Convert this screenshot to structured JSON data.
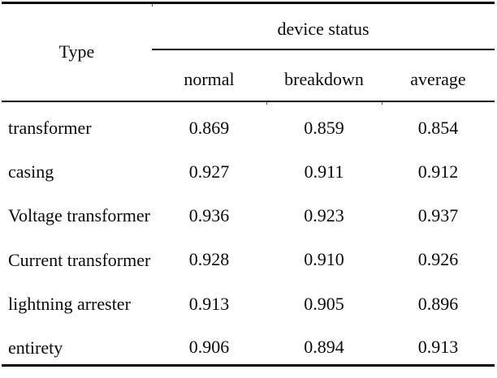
{
  "chart_data": {
    "type": "table",
    "corner_header": "Type",
    "group_header": "device status",
    "columns": [
      "normal",
      "breakdown",
      "average"
    ],
    "rows": [
      {
        "label": "transformer",
        "values": [
          "0.869",
          "0.859",
          "0.854"
        ]
      },
      {
        "label": "casing",
        "values": [
          "0.927",
          "0.911",
          "0.912"
        ]
      },
      {
        "label": "Voltage transformer",
        "values": [
          "0.936",
          "0.923",
          "0.937"
        ]
      },
      {
        "label": "Current transformer",
        "values": [
          "0.928",
          "0.910",
          "0.926"
        ]
      },
      {
        "label": "lightning arrester",
        "values": [
          "0.913",
          "0.905",
          "0.896"
        ]
      },
      {
        "label": "entirety",
        "values": [
          "0.906",
          "0.894",
          "0.913"
        ]
      }
    ]
  },
  "colors": {
    "rule": "#000000",
    "text": "#0a0a0a",
    "background": "#ffffff"
  }
}
